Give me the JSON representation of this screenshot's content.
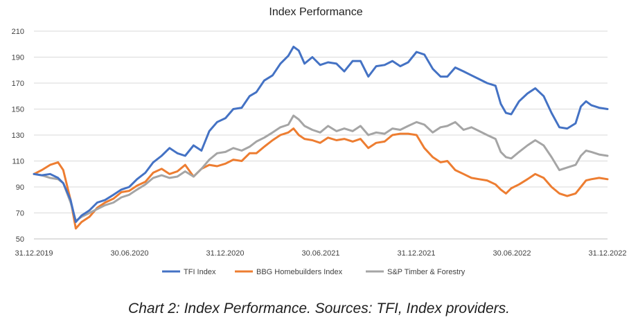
{
  "chart_data": {
    "type": "line",
    "title": "Index Performance",
    "xlabel": "",
    "ylabel": "",
    "ylim": [
      50,
      210
    ],
    "y_ticks": [
      50,
      70,
      90,
      110,
      130,
      150,
      170,
      190,
      210
    ],
    "x_tick_labels": [
      "31.12.2019",
      "30.06.2020",
      "31.12.2020",
      "30.06.2021",
      "31.12.2021",
      "30.06.2022",
      "31.12.2022"
    ],
    "x_range": [
      "2019-12-31",
      "2022-12-31"
    ],
    "grid": "horizontal",
    "legend_position": "bottom",
    "series": [
      {
        "name": "TFI Index",
        "color": "#4472c4",
        "points": [
          [
            "2019-12-31",
            100
          ],
          [
            "2020-01-15",
            99
          ],
          [
            "2020-01-31",
            100
          ],
          [
            "2020-02-15",
            97
          ],
          [
            "2020-02-25",
            93
          ],
          [
            "2020-03-10",
            80
          ],
          [
            "2020-03-20",
            63
          ],
          [
            "2020-03-31",
            68
          ],
          [
            "2020-04-15",
            72
          ],
          [
            "2020-04-30",
            78
          ],
          [
            "2020-05-15",
            80
          ],
          [
            "2020-05-31",
            84
          ],
          [
            "2020-06-15",
            88
          ],
          [
            "2020-06-30",
            90
          ],
          [
            "2020-07-15",
            96
          ],
          [
            "2020-07-31",
            101
          ],
          [
            "2020-08-15",
            109
          ],
          [
            "2020-08-31",
            114
          ],
          [
            "2020-09-15",
            120
          ],
          [
            "2020-09-30",
            116
          ],
          [
            "2020-10-15",
            114
          ],
          [
            "2020-10-31",
            122
          ],
          [
            "2020-11-15",
            118
          ],
          [
            "2020-11-30",
            133
          ],
          [
            "2020-12-15",
            140
          ],
          [
            "2020-12-31",
            143
          ],
          [
            "2021-01-15",
            150
          ],
          [
            "2021-01-31",
            151
          ],
          [
            "2021-02-15",
            160
          ],
          [
            "2021-02-28",
            163
          ],
          [
            "2021-03-15",
            172
          ],
          [
            "2021-03-31",
            176
          ],
          [
            "2021-04-15",
            185
          ],
          [
            "2021-04-30",
            191
          ],
          [
            "2021-05-10",
            198
          ],
          [
            "2021-05-20",
            195
          ],
          [
            "2021-05-31",
            185
          ],
          [
            "2021-06-15",
            190
          ],
          [
            "2021-06-30",
            184
          ],
          [
            "2021-07-15",
            186
          ],
          [
            "2021-07-31",
            185
          ],
          [
            "2021-08-15",
            179
          ],
          [
            "2021-08-31",
            187
          ],
          [
            "2021-09-15",
            187
          ],
          [
            "2021-09-30",
            175
          ],
          [
            "2021-10-15",
            183
          ],
          [
            "2021-10-31",
            184
          ],
          [
            "2021-11-15",
            187
          ],
          [
            "2021-11-30",
            183
          ],
          [
            "2021-12-15",
            186
          ],
          [
            "2021-12-31",
            194
          ],
          [
            "2022-01-15",
            192
          ],
          [
            "2022-01-31",
            181
          ],
          [
            "2022-02-15",
            175
          ],
          [
            "2022-02-28",
            175
          ],
          [
            "2022-03-15",
            182
          ],
          [
            "2022-03-31",
            179
          ],
          [
            "2022-04-15",
            176
          ],
          [
            "2022-04-30",
            173
          ],
          [
            "2022-05-15",
            170
          ],
          [
            "2022-05-31",
            168
          ],
          [
            "2022-06-10",
            154
          ],
          [
            "2022-06-20",
            147
          ],
          [
            "2022-06-30",
            146
          ],
          [
            "2022-07-15",
            156
          ],
          [
            "2022-07-31",
            162
          ],
          [
            "2022-08-15",
            166
          ],
          [
            "2022-08-31",
            160
          ],
          [
            "2022-09-15",
            147
          ],
          [
            "2022-09-30",
            136
          ],
          [
            "2022-10-15",
            135
          ],
          [
            "2022-10-31",
            139
          ],
          [
            "2022-11-10",
            152
          ],
          [
            "2022-11-20",
            156
          ],
          [
            "2022-11-30",
            153
          ],
          [
            "2022-12-15",
            151
          ],
          [
            "2022-12-31",
            150
          ]
        ]
      },
      {
        "name": "BBG Homebuilders Index",
        "color": "#ed7d31",
        "points": [
          [
            "2019-12-31",
            100
          ],
          [
            "2020-01-15",
            103
          ],
          [
            "2020-01-31",
            107
          ],
          [
            "2020-02-15",
            109
          ],
          [
            "2020-02-25",
            103
          ],
          [
            "2020-03-10",
            80
          ],
          [
            "2020-03-20",
            58
          ],
          [
            "2020-03-31",
            63
          ],
          [
            "2020-04-15",
            67
          ],
          [
            "2020-04-30",
            74
          ],
          [
            "2020-05-15",
            78
          ],
          [
            "2020-05-31",
            81
          ],
          [
            "2020-06-15",
            86
          ],
          [
            "2020-06-30",
            87
          ],
          [
            "2020-07-15",
            91
          ],
          [
            "2020-07-31",
            94
          ],
          [
            "2020-08-15",
            101
          ],
          [
            "2020-08-31",
            104
          ],
          [
            "2020-09-15",
            100
          ],
          [
            "2020-09-30",
            102
          ],
          [
            "2020-10-15",
            107
          ],
          [
            "2020-10-31",
            98
          ],
          [
            "2020-11-15",
            104
          ],
          [
            "2020-11-30",
            107
          ],
          [
            "2020-12-15",
            106
          ],
          [
            "2020-12-31",
            108
          ],
          [
            "2021-01-15",
            111
          ],
          [
            "2021-01-31",
            110
          ],
          [
            "2021-02-15",
            116
          ],
          [
            "2021-02-28",
            116
          ],
          [
            "2021-03-15",
            121
          ],
          [
            "2021-03-31",
            126
          ],
          [
            "2021-04-15",
            130
          ],
          [
            "2021-04-30",
            132
          ],
          [
            "2021-05-10",
            135
          ],
          [
            "2021-05-20",
            130
          ],
          [
            "2021-05-31",
            127
          ],
          [
            "2021-06-15",
            126
          ],
          [
            "2021-06-30",
            124
          ],
          [
            "2021-07-15",
            128
          ],
          [
            "2021-07-31",
            126
          ],
          [
            "2021-08-15",
            127
          ],
          [
            "2021-08-31",
            125
          ],
          [
            "2021-09-15",
            127
          ],
          [
            "2021-09-30",
            120
          ],
          [
            "2021-10-15",
            124
          ],
          [
            "2021-10-31",
            125
          ],
          [
            "2021-11-15",
            130
          ],
          [
            "2021-11-30",
            131
          ],
          [
            "2021-12-15",
            131
          ],
          [
            "2021-12-31",
            130
          ],
          [
            "2022-01-15",
            120
          ],
          [
            "2022-01-31",
            113
          ],
          [
            "2022-02-15",
            109
          ],
          [
            "2022-02-28",
            110
          ],
          [
            "2022-03-15",
            103
          ],
          [
            "2022-03-31",
            100
          ],
          [
            "2022-04-15",
            97
          ],
          [
            "2022-04-30",
            96
          ],
          [
            "2022-05-15",
            95
          ],
          [
            "2022-05-31",
            92
          ],
          [
            "2022-06-10",
            88
          ],
          [
            "2022-06-20",
            85
          ],
          [
            "2022-06-30",
            89
          ],
          [
            "2022-07-15",
            92
          ],
          [
            "2022-07-31",
            96
          ],
          [
            "2022-08-15",
            100
          ],
          [
            "2022-08-31",
            97
          ],
          [
            "2022-09-15",
            90
          ],
          [
            "2022-09-30",
            85
          ],
          [
            "2022-10-15",
            83
          ],
          [
            "2022-10-31",
            85
          ],
          [
            "2022-11-10",
            90
          ],
          [
            "2022-11-20",
            95
          ],
          [
            "2022-11-30",
            96
          ],
          [
            "2022-12-15",
            97
          ],
          [
            "2022-12-31",
            96
          ]
        ]
      },
      {
        "name": "S&P Timber & Forestry",
        "color": "#a5a5a5",
        "points": [
          [
            "2019-12-31",
            100
          ],
          [
            "2020-01-15",
            99
          ],
          [
            "2020-01-31",
            97
          ],
          [
            "2020-02-15",
            96
          ],
          [
            "2020-02-25",
            93
          ],
          [
            "2020-03-10",
            78
          ],
          [
            "2020-03-20",
            64
          ],
          [
            "2020-03-31",
            67
          ],
          [
            "2020-04-15",
            70
          ],
          [
            "2020-04-30",
            73
          ],
          [
            "2020-05-15",
            76
          ],
          [
            "2020-05-31",
            78
          ],
          [
            "2020-06-15",
            82
          ],
          [
            "2020-06-30",
            84
          ],
          [
            "2020-07-15",
            88
          ],
          [
            "2020-07-31",
            92
          ],
          [
            "2020-08-15",
            97
          ],
          [
            "2020-08-31",
            99
          ],
          [
            "2020-09-15",
            97
          ],
          [
            "2020-09-30",
            98
          ],
          [
            "2020-10-15",
            102
          ],
          [
            "2020-10-31",
            98
          ],
          [
            "2020-11-15",
            104
          ],
          [
            "2020-11-30",
            111
          ],
          [
            "2020-12-15",
            116
          ],
          [
            "2020-12-31",
            117
          ],
          [
            "2021-01-15",
            120
          ],
          [
            "2021-01-31",
            118
          ],
          [
            "2021-02-15",
            121
          ],
          [
            "2021-02-28",
            125
          ],
          [
            "2021-03-15",
            128
          ],
          [
            "2021-03-31",
            132
          ],
          [
            "2021-04-15",
            136
          ],
          [
            "2021-04-30",
            138
          ],
          [
            "2021-05-10",
            145
          ],
          [
            "2021-05-20",
            142
          ],
          [
            "2021-05-31",
            137
          ],
          [
            "2021-06-15",
            134
          ],
          [
            "2021-06-30",
            132
          ],
          [
            "2021-07-15",
            137
          ],
          [
            "2021-07-31",
            133
          ],
          [
            "2021-08-15",
            135
          ],
          [
            "2021-08-31",
            133
          ],
          [
            "2021-09-15",
            137
          ],
          [
            "2021-09-30",
            130
          ],
          [
            "2021-10-15",
            132
          ],
          [
            "2021-10-31",
            131
          ],
          [
            "2021-11-15",
            135
          ],
          [
            "2021-11-30",
            134
          ],
          [
            "2021-12-15",
            137
          ],
          [
            "2021-12-31",
            140
          ],
          [
            "2022-01-15",
            138
          ],
          [
            "2022-01-31",
            132
          ],
          [
            "2022-02-15",
            136
          ],
          [
            "2022-02-28",
            137
          ],
          [
            "2022-03-15",
            140
          ],
          [
            "2022-03-31",
            134
          ],
          [
            "2022-04-15",
            136
          ],
          [
            "2022-04-30",
            133
          ],
          [
            "2022-05-15",
            130
          ],
          [
            "2022-05-31",
            127
          ],
          [
            "2022-06-10",
            117
          ],
          [
            "2022-06-20",
            113
          ],
          [
            "2022-06-30",
            112
          ],
          [
            "2022-07-15",
            117
          ],
          [
            "2022-07-31",
            122
          ],
          [
            "2022-08-15",
            126
          ],
          [
            "2022-08-31",
            122
          ],
          [
            "2022-09-15",
            113
          ],
          [
            "2022-09-30",
            103
          ],
          [
            "2022-10-15",
            105
          ],
          [
            "2022-10-31",
            107
          ],
          [
            "2022-11-10",
            114
          ],
          [
            "2022-11-20",
            118
          ],
          [
            "2022-11-30",
            117
          ],
          [
            "2022-12-15",
            115
          ],
          [
            "2022-12-31",
            114
          ]
        ]
      }
    ]
  },
  "caption": "Chart 2: Index Performance. Sources: TFI, Index providers."
}
